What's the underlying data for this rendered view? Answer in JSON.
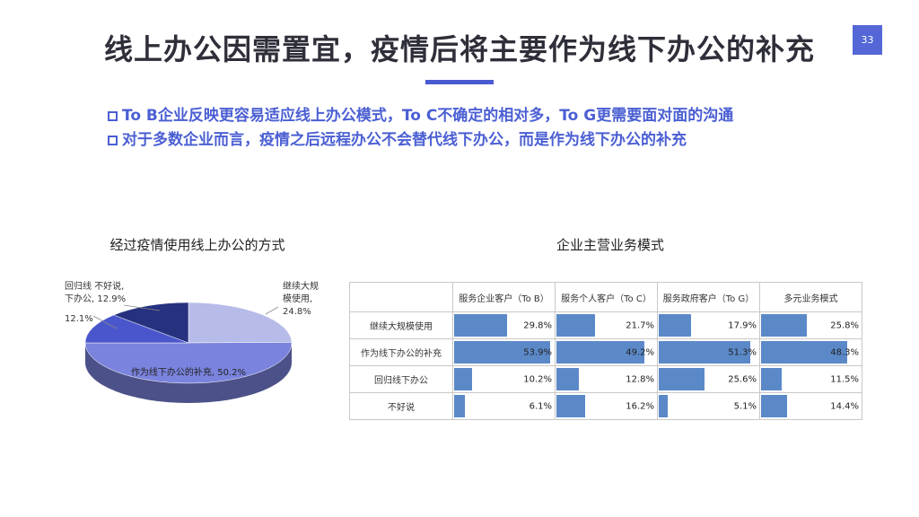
{
  "title": "线上办公因需置宜，疫情后将主要作为线下办公的补充",
  "page_number": "33",
  "bullets": [
    "To B企业反映更容易适应线上办公模式，To C不确定的相对多，To G更需要面对面的沟通",
    "对于多数企业而言，疫情之后远程办公不会替代线下办公，而是作为线下办公的补充"
  ],
  "colors": {
    "accent": "#4b5fd3",
    "badge": "#5567d6",
    "bar": "#5b89c8"
  },
  "chart_data": [
    {
      "type": "pie",
      "title": "经过疫情使用线上办公的方式",
      "slices": [
        {
          "label": "继续大规模使用",
          "value": 24.8,
          "color": "#b7bbe9",
          "display": [
            "继续大规",
            "模使用,",
            "24.8%"
          ]
        },
        {
          "label": "作为线下办公的补充",
          "value": 50.2,
          "color": "#7a83dd",
          "display": [
            "作为线下办公的补充, 50.2%"
          ]
        },
        {
          "label": "回归线下办公",
          "value": 12.1,
          "color": "#4a57cc",
          "display": [
            "12.1%"
          ]
        },
        {
          "label": "不好说",
          "value": 12.9,
          "color": "#263280",
          "display": [
            "回归线 不好说,",
            "下办公, 12.9%"
          ]
        }
      ]
    },
    {
      "type": "table",
      "title": "企业主营业务模式",
      "columns": [
        "服务企业客户（To B）",
        "服务个人客户（To C）",
        "服务政府客户（To G）",
        "多元业务模式"
      ],
      "rows": [
        "继续大规模使用",
        "作为线下办公的补充",
        "回归线下办公",
        "不好说"
      ],
      "values": [
        [
          29.8,
          21.7,
          17.9,
          25.8
        ],
        [
          53.9,
          49.2,
          51.3,
          48.3
        ],
        [
          10.2,
          12.8,
          25.6,
          11.5
        ],
        [
          6.1,
          16.2,
          5.1,
          14.4
        ]
      ],
      "bar_max": 55
    }
  ]
}
